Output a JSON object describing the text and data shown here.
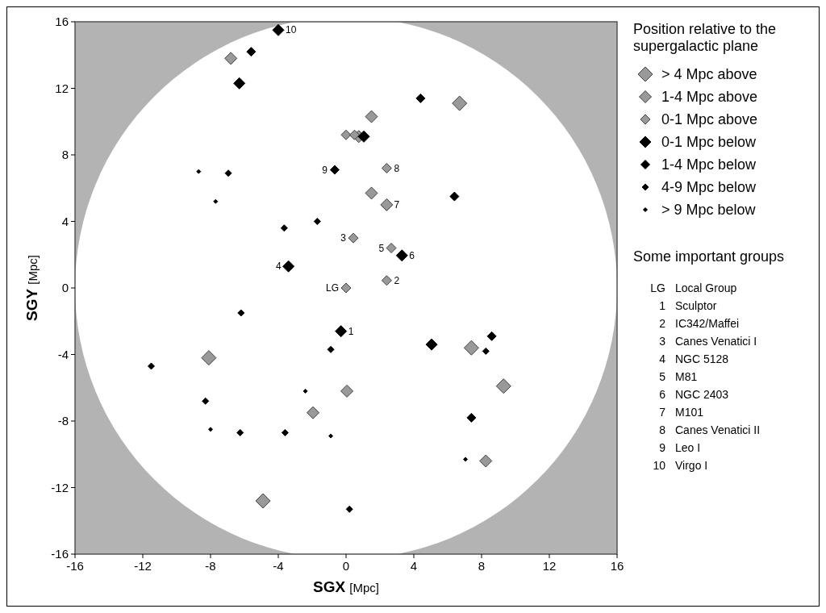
{
  "chart_data": {
    "type": "scatter",
    "xlabel": "SGX [Mpc]",
    "ylabel": "SGY [Mpc]",
    "legend_title": "Position relative to the supergalactic plane",
    "legend": "right",
    "marker": "diamond",
    "grid": false,
    "xlim": [
      -16,
      16
    ],
    "xticks": [
      -16,
      -12,
      -8,
      -4,
      0,
      4,
      8,
      12,
      16
    ],
    "ylim": [
      -16,
      16
    ],
    "yticks": [
      -16,
      -12,
      -8,
      -4,
      0,
      4,
      8,
      12,
      16
    ],
    "series": [
      {
        "name": "> 4 Mpc above",
        "color": "#999999",
        "x": [
          6.7,
          -8.1,
          7.4,
          9.3,
          -4.9
        ],
        "values": [
          11.1,
          -4.2,
          -3.6,
          -5.9,
          -12.8
        ]
      },
      {
        "name": "1-4 Mpc above",
        "color": "#999999",
        "x": [
          -6.8,
          1.5,
          0.75,
          1.5,
          2.4,
          0.05,
          -1.95,
          8.25
        ],
        "values": [
          13.8,
          10.3,
          9.1,
          5.7,
          5.0,
          -6.2,
          -7.5,
          -10.4
        ]
      },
      {
        "name": "0-1 Mpc above",
        "color": "#999999",
        "x": [
          0,
          0.5,
          2.4,
          0.43,
          2.67,
          2.4,
          0
        ],
        "values": [
          9.2,
          9.2,
          7.2,
          3.0,
          2.4,
          0.45,
          0
        ]
      },
      {
        "name": "0-1 Mpc below",
        "color": "#000000",
        "x": [
          -4.0,
          -6.3,
          1.05,
          -3.4,
          3.3,
          -0.3,
          5.05
        ],
        "values": [
          15.5,
          12.3,
          9.1,
          1.3,
          1.95,
          -2.6,
          -3.4
        ]
      },
      {
        "name": "1-4 Mpc below",
        "color": "#000000",
        "x": [
          -5.6,
          -0.67,
          4.4,
          6.4,
          8.6,
          7.4
        ],
        "values": [
          14.2,
          7.1,
          11.4,
          5.5,
          -2.9,
          -7.8
        ]
      },
      {
        "name": "4-9 Mpc below",
        "color": "#000000",
        "x": [
          -6.95,
          -1.7,
          -3.65,
          -6.2,
          -0.9,
          -11.5,
          -8.3,
          -6.25,
          -3.6,
          8.25,
          0.2
        ],
        "values": [
          6.9,
          4.0,
          3.6,
          -1.5,
          -3.7,
          -4.7,
          -6.8,
          -8.7,
          -8.7,
          -3.8,
          -13.3
        ]
      },
      {
        "name": "> 9 Mpc below",
        "color": "#000000",
        "x": [
          -8.7,
          -7.7,
          -2.4,
          -8.0,
          -0.9,
          7.05
        ],
        "values": [
          7.0,
          5.2,
          -6.2,
          -8.5,
          -8.9,
          -10.3
        ]
      }
    ],
    "annotations": [
      {
        "text": "LG",
        "x": 0,
        "y": 0
      },
      {
        "text": "1",
        "x": -0.3,
        "y": -2.6
      },
      {
        "text": "2",
        "x": 2.4,
        "y": 0.45
      },
      {
        "text": "3",
        "x": 0.43,
        "y": 3.0
      },
      {
        "text": "4",
        "x": -3.4,
        "y": 1.3
      },
      {
        "text": "5",
        "x": 2.67,
        "y": 2.4
      },
      {
        "text": "6",
        "x": 3.3,
        "y": 1.95
      },
      {
        "text": "7",
        "x": 2.4,
        "y": 5.0
      },
      {
        "text": "8",
        "x": 2.4,
        "y": 7.2
      },
      {
        "text": "9",
        "x": -0.67,
        "y": 7.1
      },
      {
        "text": "10",
        "x": -4.0,
        "y": 15.5
      },
      "Some important groups",
      "LG Local Group",
      "1 Sculptor",
      "2 IC342/Maffei",
      "3 Canes Venatici I",
      "4 NGC 5128",
      "5 M81",
      "6 NGC 2403",
      "7 M101",
      "8 Canes Venatici II",
      "9 Leo I",
      "10 Virgo I"
    ]
  }
}
